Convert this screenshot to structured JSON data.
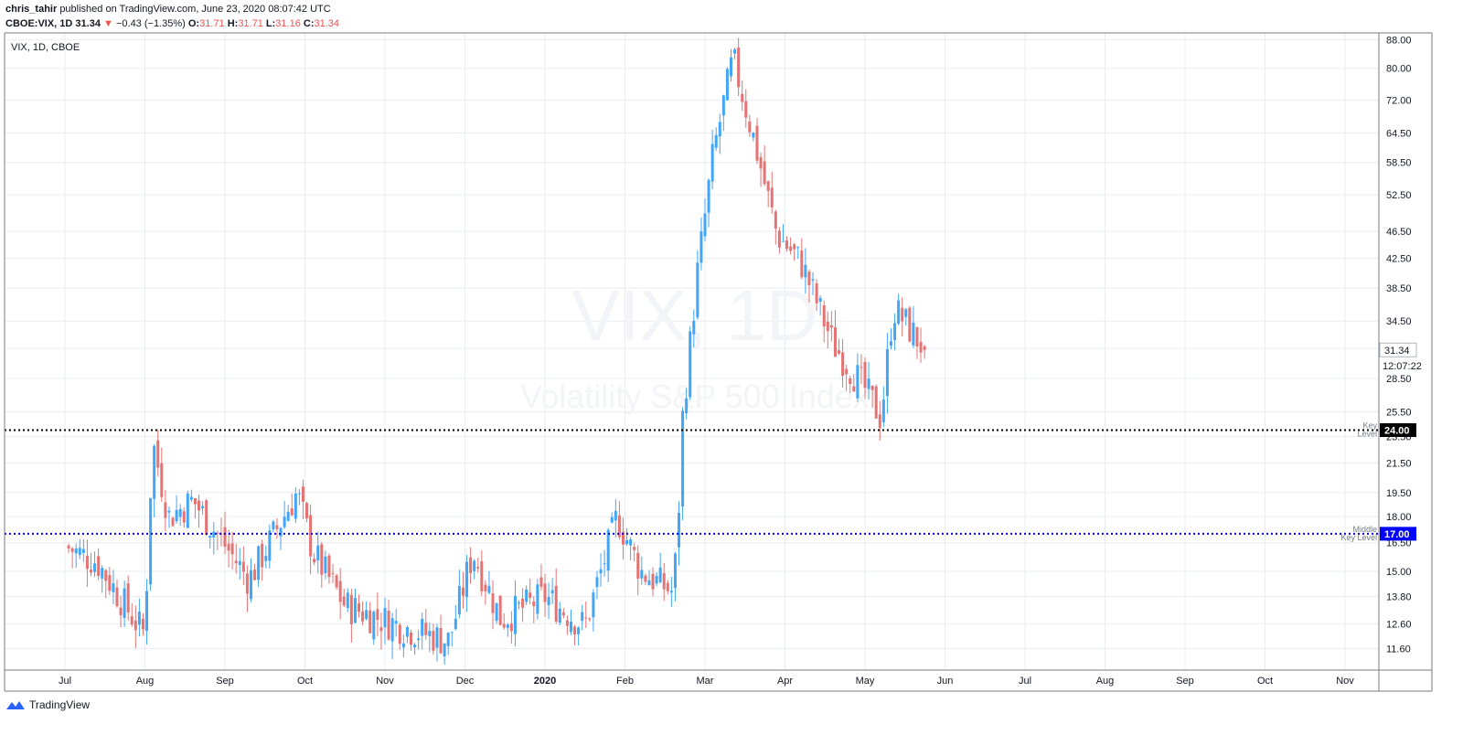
{
  "header": {
    "author": "chris_tahir",
    "published": "published on TradingView.com, June 23, 2020 08:07:42 UTC",
    "symbol": "CBOE:VIX, 1D",
    "last": "31.34",
    "change": "−0.43 (−1.35%)",
    "o_label": "O:",
    "o": "31.71",
    "h_label": "H:",
    "h": "31.71",
    "l_label": "L:",
    "l": "31.16",
    "c_label": "C:",
    "c": "31.34"
  },
  "legend": {
    "label": "VIX, 1D, CBOE"
  },
  "watermark": {
    "ticker": "VIX, 1D",
    "name": "Volatility S&P 500 Index"
  },
  "levels": {
    "key": {
      "price": 24.0,
      "label": "24.00",
      "note1": "Key",
      "note2": "Level",
      "color": "#000000"
    },
    "middle": {
      "price": 17.0,
      "label": "17.00",
      "note1": "Middle",
      "note2": "Key Level",
      "color": "#0000ff"
    }
  },
  "last_price_badge": {
    "label": "31.34"
  },
  "countdown": {
    "label": "12:07:22"
  },
  "footer": {
    "brand": "TradingView"
  },
  "colors": {
    "up": "#42a5f5",
    "down": "#e57373",
    "grid": "#e9ecf2"
  },
  "chart_data": {
    "type": "candlestick",
    "symbol": "CBOE:VIX",
    "interval": "1D",
    "y_scale": "log",
    "ylim": [
      10.8,
      90.0
    ],
    "y_ticks": [
      11.6,
      12.6,
      13.8,
      15.0,
      16.5,
      18.0,
      19.5,
      21.5,
      23.5,
      25.5,
      28.5,
      31.5,
      34.5,
      38.5,
      42.5,
      46.5,
      52.5,
      58.5,
      64.5,
      72.0,
      80.0,
      88.0
    ],
    "x_tick_labels": [
      "Jul",
      "Aug",
      "Sep",
      "Oct",
      "Nov",
      "Dec",
      "2020",
      "Feb",
      "Mar",
      "Apr",
      "May",
      "Jun",
      "Jul",
      "Aug",
      "Sep",
      "Oct",
      "Nov"
    ],
    "anchors": [
      {
        "m": 0,
        "c": 16.3
      },
      {
        "m": 0.4,
        "c": 15.5
      },
      {
        "m": 0.9,
        "c": 12.6
      },
      {
        "m": 1.0,
        "c": 12.2
      },
      {
        "m": 1.05,
        "c": 17.8
      },
      {
        "m": 1.1,
        "c": 23.0
      },
      {
        "m": 1.3,
        "c": 18.0
      },
      {
        "m": 1.6,
        "c": 19.0
      },
      {
        "m": 1.9,
        "c": 17.0
      },
      {
        "m": 2.3,
        "c": 14.6
      },
      {
        "m": 2.9,
        "c": 19.5
      },
      {
        "m": 3.1,
        "c": 16.0
      },
      {
        "m": 3.5,
        "c": 13.4
      },
      {
        "m": 4.2,
        "c": 12.5
      },
      {
        "m": 4.8,
        "c": 11.9
      },
      {
        "m": 5.1,
        "c": 16.0
      },
      {
        "m": 5.45,
        "c": 12.8
      },
      {
        "m": 6.0,
        "c": 13.8
      },
      {
        "m": 6.5,
        "c": 12.5
      },
      {
        "m": 6.9,
        "c": 18.0
      },
      {
        "m": 7.2,
        "c": 15.0
      },
      {
        "m": 7.6,
        "c": 14.0
      },
      {
        "m": 7.66,
        "c": 17.1
      },
      {
        "m": 7.72,
        "c": 25.0
      },
      {
        "m": 7.9,
        "c": 40.0
      },
      {
        "m": 8.1,
        "c": 60.0
      },
      {
        "m": 8.35,
        "c": 82.7
      },
      {
        "m": 8.6,
        "c": 64.0
      },
      {
        "m": 8.9,
        "c": 46.0
      },
      {
        "m": 9.2,
        "c": 42.0
      },
      {
        "m": 9.6,
        "c": 32.0
      },
      {
        "m": 10.0,
        "c": 27.5
      },
      {
        "m": 10.2,
        "c": 25.0
      },
      {
        "m": 10.35,
        "c": 36.0
      },
      {
        "m": 10.45,
        "c": 35.0
      },
      {
        "m": 10.75,
        "c": 31.34
      }
    ],
    "last_bar": {
      "date": "2020-06-22",
      "open": 31.71,
      "high": 31.71,
      "low": 31.16,
      "close": 31.34
    }
  }
}
